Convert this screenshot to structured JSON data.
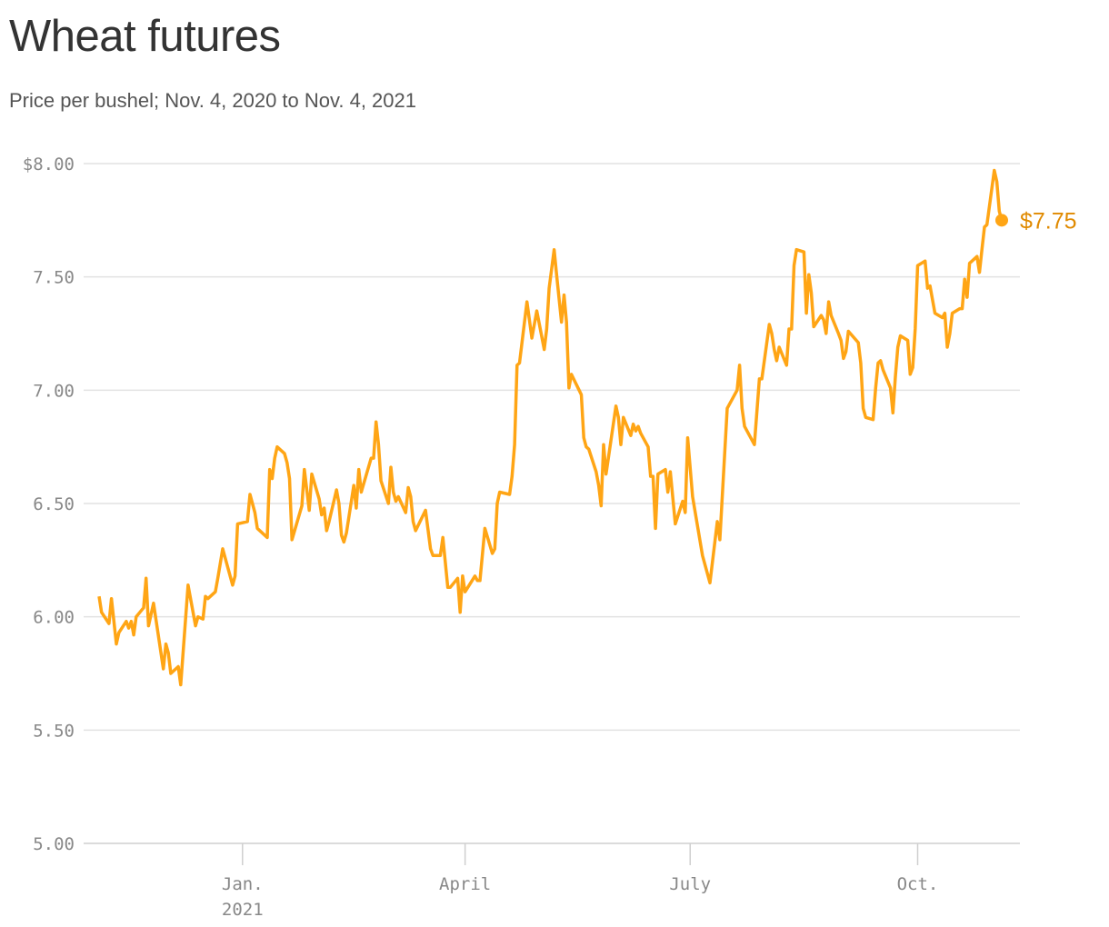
{
  "title": "Wheat futures",
  "subtitle": "Price per bushel; Nov. 4, 2020 to Nov. 4, 2021",
  "chart_data": {
    "type": "line",
    "title": "Wheat futures",
    "subtitle": "Price per bushel; Nov. 4, 2020 to Nov. 4, 2021",
    "xlabel": "",
    "ylabel": "",
    "ylim": [
      5.0,
      8.0
    ],
    "xlim": [
      "2020-11-04",
      "2021-11-04"
    ],
    "grid": "horizontal",
    "line_color": "#FFA515",
    "label_color": "#E08A00",
    "y_ticks": [
      {
        "value": 8.0,
        "label": "$8.00"
      },
      {
        "value": 7.5,
        "label": "7.50"
      },
      {
        "value": 7.0,
        "label": "7.00"
      },
      {
        "value": 6.5,
        "label": "6.50"
      },
      {
        "value": 6.0,
        "label": "6.00"
      },
      {
        "value": 5.5,
        "label": "5.50"
      },
      {
        "value": 5.0,
        "label": "5.00"
      }
    ],
    "x_ticks": [
      {
        "date": "2021-01-01",
        "label": "Jan.",
        "sublabel": "2021"
      },
      {
        "date": "2021-04-01",
        "label": "April"
      },
      {
        "date": "2021-07-01",
        "label": "July"
      },
      {
        "date": "2021-10-01",
        "label": "Oct."
      }
    ],
    "last_point_label": "$7.75",
    "x": [
      "2020-11-04",
      "2020-11-05",
      "2020-11-08",
      "2020-11-09",
      "2020-11-11",
      "2020-11-12",
      "2020-11-15",
      "2020-11-16",
      "2020-11-17",
      "2020-11-18",
      "2020-11-19",
      "2020-11-22",
      "2020-11-23",
      "2020-11-24",
      "2020-11-26",
      "2020-11-30",
      "2020-12-01",
      "2020-12-02",
      "2020-12-03",
      "2020-12-06",
      "2020-12-07",
      "2020-12-10",
      "2020-12-13",
      "2020-12-14",
      "2020-12-16",
      "2020-12-17",
      "2020-12-18",
      "2020-12-21",
      "2020-12-22",
      "2020-12-24",
      "2020-12-28",
      "2020-12-29",
      "2020-12-30",
      "2021-01-03",
      "2021-01-04",
      "2021-01-06",
      "2021-01-07",
      "2021-01-11",
      "2021-01-12",
      "2021-01-13",
      "2021-01-14",
      "2021-01-15",
      "2021-01-18",
      "2021-01-19",
      "2021-01-20",
      "2021-01-21",
      "2021-01-25",
      "2021-01-26",
      "2021-01-28",
      "2021-01-29",
      "2021-02-01",
      "2021-02-02",
      "2021-02-03",
      "2021-02-04",
      "2021-02-05",
      "2021-02-08",
      "2021-02-09",
      "2021-02-10",
      "2021-02-11",
      "2021-02-12",
      "2021-02-15",
      "2021-02-16",
      "2021-02-17",
      "2021-02-18",
      "2021-02-22",
      "2021-02-23",
      "2021-02-24",
      "2021-02-25",
      "2021-02-26",
      "2021-03-01",
      "2021-03-02",
      "2021-03-03",
      "2021-03-04",
      "2021-03-05",
      "2021-03-08",
      "2021-03-09",
      "2021-03-10",
      "2021-03-11",
      "2021-03-12",
      "2021-03-16",
      "2021-03-18",
      "2021-03-19",
      "2021-03-22",
      "2021-03-23",
      "2021-03-25",
      "2021-03-26",
      "2021-03-29",
      "2021-03-30",
      "2021-03-31",
      "2021-04-01",
      "2021-04-05",
      "2021-04-06",
      "2021-04-07",
      "2021-04-09",
      "2021-04-12",
      "2021-04-13",
      "2021-04-14",
      "2021-04-15",
      "2021-04-19",
      "2021-04-20",
      "2021-04-21",
      "2021-04-22",
      "2021-04-23",
      "2021-04-26",
      "2021-04-28",
      "2021-04-30",
      "2021-05-03",
      "2021-05-04",
      "2021-05-05",
      "2021-05-07",
      "2021-05-08",
      "2021-05-10",
      "2021-05-11",
      "2021-05-12",
      "2021-05-13",
      "2021-05-14",
      "2021-05-18",
      "2021-05-19",
      "2021-05-20",
      "2021-05-21",
      "2021-05-24",
      "2021-05-25",
      "2021-05-26",
      "2021-05-27",
      "2021-05-28",
      "2021-06-01",
      "2021-06-02",
      "2021-06-03",
      "2021-06-04",
      "2021-06-07",
      "2021-06-08",
      "2021-06-09",
      "2021-06-10",
      "2021-06-11",
      "2021-06-14",
      "2021-06-15",
      "2021-06-16",
      "2021-06-17",
      "2021-06-18",
      "2021-06-21",
      "2021-06-22",
      "2021-06-23",
      "2021-06-25",
      "2021-06-28",
      "2021-06-29",
      "2021-06-30",
      "2021-07-02",
      "2021-07-06",
      "2021-07-09",
      "2021-07-12",
      "2021-07-13",
      "2021-07-16",
      "2021-07-20",
      "2021-07-21",
      "2021-07-22",
      "2021-07-23",
      "2021-07-27",
      "2021-07-29",
      "2021-07-30",
      "2021-08-02",
      "2021-08-03",
      "2021-08-04",
      "2021-08-05",
      "2021-08-06",
      "2021-08-09",
      "2021-08-10",
      "2021-08-11",
      "2021-08-12",
      "2021-08-13",
      "2021-08-16",
      "2021-08-17",
      "2021-08-18",
      "2021-08-19",
      "2021-08-20",
      "2021-08-23",
      "2021-08-24",
      "2021-08-25",
      "2021-08-26",
      "2021-08-27",
      "2021-08-30",
      "2021-08-31",
      "2021-09-01",
      "2021-09-02",
      "2021-09-03",
      "2021-09-07",
      "2021-09-08",
      "2021-09-09",
      "2021-09-10",
      "2021-09-13",
      "2021-09-14",
      "2021-09-15",
      "2021-09-16",
      "2021-09-17",
      "2021-09-20",
      "2021-09-21",
      "2021-09-22",
      "2021-09-23",
      "2021-09-24",
      "2021-09-27",
      "2021-09-28",
      "2021-09-29",
      "2021-09-30",
      "2021-10-01",
      "2021-10-04",
      "2021-10-05",
      "2021-10-06",
      "2021-10-07",
      "2021-10-08",
      "2021-10-11",
      "2021-10-12",
      "2021-10-13",
      "2021-10-14",
      "2021-10-15",
      "2021-10-18",
      "2021-10-19",
      "2021-10-20",
      "2021-10-21",
      "2021-10-22",
      "2021-10-25",
      "2021-10-26",
      "2021-10-27",
      "2021-10-28",
      "2021-10-29",
      "2021-11-01",
      "2021-11-02",
      "2021-11-03",
      "2021-11-04"
    ],
    "y": [
      6.09,
      6.02,
      5.97,
      6.08,
      5.88,
      5.93,
      5.98,
      5.95,
      5.98,
      5.92,
      6.0,
      6.04,
      6.17,
      5.96,
      6.06,
      5.77,
      5.88,
      5.84,
      5.75,
      5.78,
      5.7,
      6.14,
      5.96,
      6.0,
      5.99,
      6.09,
      6.08,
      6.11,
      6.17,
      6.3,
      6.14,
      6.18,
      6.41,
      6.42,
      6.54,
      6.46,
      6.39,
      6.35,
      6.65,
      6.61,
      6.7,
      6.75,
      6.72,
      6.68,
      6.61,
      6.34,
      6.49,
      6.65,
      6.47,
      6.63,
      6.52,
      6.45,
      6.48,
      6.38,
      6.42,
      6.56,
      6.5,
      6.36,
      6.33,
      6.37,
      6.58,
      6.48,
      6.65,
      6.55,
      6.7,
      6.7,
      6.86,
      6.76,
      6.6,
      6.5,
      6.66,
      6.55,
      6.51,
      6.53,
      6.46,
      6.57,
      6.53,
      6.42,
      6.38,
      6.47,
      6.3,
      6.27,
      6.27,
      6.35,
      6.13,
      6.13,
      6.17,
      6.02,
      6.18,
      6.11,
      6.18,
      6.16,
      6.16,
      6.39,
      6.28,
      6.3,
      6.5,
      6.55,
      6.54,
      6.62,
      6.76,
      7.11,
      7.12,
      7.39,
      7.23,
      7.35,
      7.18,
      7.27,
      7.45,
      7.62,
      7.51,
      7.3,
      7.42,
      7.3,
      7.01,
      7.07,
      6.98,
      6.79,
      6.75,
      6.74,
      6.64,
      6.58,
      6.49,
      6.76,
      6.63,
      6.93,
      6.88,
      6.76,
      6.88,
      6.8,
      6.85,
      6.82,
      6.84,
      6.81,
      6.75,
      6.62,
      6.62,
      6.39,
      6.63,
      6.65,
      6.55,
      6.64,
      6.41,
      6.51,
      6.46,
      6.79,
      6.53,
      6.27,
      6.15,
      6.42,
      6.34,
      6.92,
      7.0,
      7.11,
      6.92,
      6.84,
      6.76,
      7.05,
      7.05,
      7.29,
      7.25,
      7.18,
      7.13,
      7.19,
      7.11,
      7.27,
      7.27,
      7.55,
      7.62,
      7.61,
      7.34,
      7.51,
      7.43,
      7.28,
      7.33,
      7.31,
      7.25,
      7.39,
      7.33,
      7.25,
      7.22,
      7.14,
      7.17,
      7.26,
      7.21,
      7.12,
      6.92,
      6.88,
      6.87,
      7.01,
      7.12,
      7.13,
      7.09,
      7.01,
      6.9,
      7.06,
      7.19,
      7.24,
      7.22,
      7.07,
      7.1,
      7.27,
      7.55,
      7.57,
      7.45,
      7.46,
      7.4,
      7.34,
      7.32,
      7.34,
      7.19,
      7.25,
      7.34,
      7.36,
      7.36,
      7.49,
      7.41,
      7.56,
      7.59,
      7.52,
      7.62,
      7.72,
      7.73,
      7.97,
      7.92,
      7.79,
      7.75
    ]
  }
}
